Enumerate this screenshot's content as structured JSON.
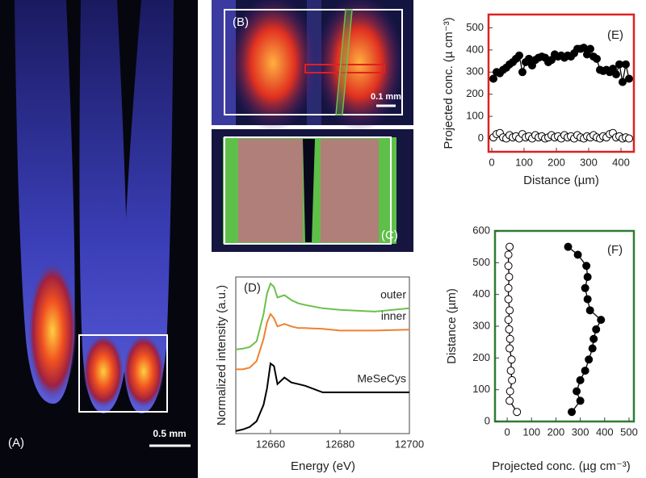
{
  "panels": {
    "A": {
      "label": "(A)",
      "scale": "0.5 mm"
    },
    "B": {
      "label": "(B)",
      "scale": "0.1 mm"
    },
    "C": {
      "label": "(C)"
    }
  },
  "chart_data": [
    {
      "type": "line",
      "label": "(D)",
      "x_label": "Energy (eV)",
      "y_label": "Normalized intensity (a.u.)",
      "x": [
        12650,
        12652,
        12654,
        12656,
        12658,
        12659,
        12660,
        12661,
        12662,
        12664,
        12666,
        12668,
        12670,
        12675,
        12680,
        12690,
        12700
      ],
      "xlim": [
        12650,
        12700
      ],
      "xticks": [
        12660,
        12680,
        12700
      ],
      "ylim": [
        0,
        1.9
      ],
      "series": [
        {
          "name": "outer",
          "color": "#6cc04a",
          "values": [
            1.02,
            1.03,
            1.05,
            1.12,
            1.45,
            1.7,
            1.82,
            1.78,
            1.65,
            1.68,
            1.62,
            1.58,
            1.56,
            1.52,
            1.5,
            1.48,
            1.52
          ]
        },
        {
          "name": "inner",
          "color": "#f08030",
          "values": [
            0.78,
            0.78,
            0.8,
            0.88,
            1.15,
            1.35,
            1.45,
            1.4,
            1.3,
            1.33,
            1.3,
            1.28,
            1.28,
            1.27,
            1.25,
            1.25,
            1.26
          ]
        },
        {
          "name": "MeSeCys",
          "color": "#000000",
          "values": [
            0.03,
            0.05,
            0.08,
            0.15,
            0.35,
            0.55,
            0.85,
            0.82,
            0.6,
            0.68,
            0.62,
            0.6,
            0.58,
            0.5,
            0.5,
            0.5,
            0.5
          ]
        }
      ]
    },
    {
      "type": "scatter",
      "label": "(E)",
      "x_label": "Distance (µm)",
      "y_label": "Projected conc. (µ cm⁻³)",
      "frame_color": "#e02020",
      "x": [
        5,
        15,
        25,
        35,
        45,
        55,
        65,
        75,
        85,
        95,
        105,
        115,
        125,
        135,
        145,
        155,
        165,
        175,
        185,
        195,
        205,
        215,
        225,
        235,
        245,
        255,
        265,
        275,
        285,
        295,
        305,
        315,
        325,
        335,
        345,
        355,
        365,
        375,
        385,
        395,
        405,
        415,
        425
      ],
      "xlim": [
        -10,
        440
      ],
      "xticks": [
        0,
        100,
        200,
        300,
        400
      ],
      "ylim": [
        -60,
        560
      ],
      "yticks": [
        0,
        100,
        200,
        300,
        400,
        500
      ],
      "series": [
        {
          "color": "#000000",
          "marker_fill": "#000000",
          "connected": true,
          "values": [
            270,
            300,
            295,
            310,
            320,
            335,
            345,
            360,
            375,
            300,
            345,
            360,
            330,
            355,
            365,
            370,
            365,
            345,
            355,
            380,
            370,
            375,
            365,
            375,
            370,
            385,
            405,
            405,
            410,
            380,
            405,
            370,
            360,
            310,
            305,
            310,
            300,
            315,
            290,
            335,
            255,
            335,
            270
          ]
        },
        {
          "color": "#000000",
          "marker_fill": "#ffffff",
          "connected": true,
          "values": [
            5,
            20,
            25,
            5,
            0,
            15,
            5,
            10,
            0,
            20,
            5,
            10,
            0,
            15,
            5,
            10,
            0,
            5,
            15,
            5,
            10,
            0,
            15,
            5,
            10,
            0,
            15,
            5,
            0,
            10,
            5,
            15,
            5,
            0,
            10,
            5,
            20,
            25,
            5,
            10,
            0,
            5,
            0
          ]
        }
      ]
    },
    {
      "type": "scatter",
      "label": "(F)",
      "x_label": "Projected conc. (µg cm⁻³)",
      "y_label": "Distance (µm)",
      "frame_color": "#2e7d32",
      "y": [
        550,
        525,
        490,
        455,
        420,
        385,
        350,
        320,
        290,
        260,
        230,
        195,
        160,
        130,
        95,
        65,
        30
      ],
      "xlim": [
        -50,
        520
      ],
      "xticks": [
        0,
        100,
        200,
        300,
        400,
        500
      ],
      "ylim": [
        0,
        600
      ],
      "yticks": [
        0,
        100,
        200,
        300,
        400,
        500,
        600
      ],
      "series": [
        {
          "color": "#000000",
          "marker_fill": "#000000",
          "connected": true,
          "values": [
            250,
            290,
            325,
            330,
            320,
            330,
            340,
            385,
            365,
            355,
            350,
            335,
            320,
            300,
            285,
            300,
            265
          ]
        },
        {
          "color": "#000000",
          "marker_fill": "#ffffff",
          "connected": true,
          "values": [
            10,
            5,
            5,
            8,
            5,
            5,
            10,
            5,
            8,
            12,
            10,
            18,
            15,
            20,
            12,
            10,
            40
          ]
        }
      ]
    }
  ]
}
